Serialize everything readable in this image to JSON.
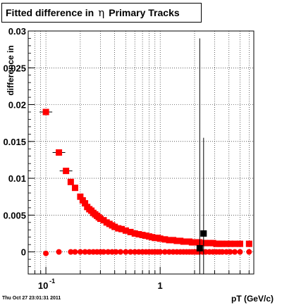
{
  "title": {
    "prefix": "Fitted difference in",
    "symbol": "η",
    "suffix": "Primary Tracks"
  },
  "timestamp": "Thu Oct 27 23:01:31 2011",
  "chart_data": {
    "type": "scatter",
    "xlabel": "pT (GeV/c)",
    "ylabel": "difference in",
    "x_scale": "log",
    "xlim": [
      0.07,
      6.6
    ],
    "ylim": [
      -0.003,
      0.03
    ],
    "grid": true,
    "x_ticks": [
      {
        "value": 0.1,
        "label": "10",
        "exponent": "-1"
      },
      {
        "value": 1,
        "label": "1",
        "exponent": ""
      }
    ],
    "y_ticks": [
      {
        "value": 0,
        "label": "0"
      },
      {
        "value": 0.005,
        "label": "0.005"
      },
      {
        "value": 0.01,
        "label": "0.01"
      },
      {
        "value": 0.015,
        "label": "0.015"
      },
      {
        "value": 0.02,
        "label": "0.02"
      },
      {
        "value": 0.025,
        "label": "0.025"
      },
      {
        "value": 0.03,
        "label": "0.03"
      }
    ],
    "series": [
      {
        "marker": "square",
        "color": "#ff0000",
        "x": [
          0.1,
          0.13,
          0.15,
          0.165,
          0.18,
          0.2,
          0.21,
          0.22,
          0.23,
          0.24,
          0.25,
          0.26,
          0.27,
          0.28,
          0.29,
          0.3,
          0.32,
          0.34,
          0.36,
          0.38,
          0.4,
          0.43,
          0.46,
          0.5,
          0.55,
          0.6,
          0.65,
          0.7,
          0.75,
          0.8,
          0.85,
          0.9,
          0.95,
          1.0,
          1.1,
          1.2,
          1.3,
          1.4,
          1.5,
          1.6,
          1.7,
          1.8,
          1.9,
          2.0,
          2.1,
          2.2,
          2.35,
          2.5,
          2.7,
          2.9,
          3.1,
          3.3,
          3.5,
          3.8,
          4.1,
          4.5,
          5.0,
          6.0
        ],
        "y": [
          0.019,
          0.0135,
          0.011,
          0.0095,
          0.0087,
          0.0075,
          0.007,
          0.0066,
          0.0061,
          0.0058,
          0.0056,
          0.0053,
          0.0051,
          0.0049,
          0.0047,
          0.0045,
          0.0043,
          0.004,
          0.0038,
          0.0036,
          0.0034,
          0.0032,
          0.0031,
          0.0029,
          0.0027,
          0.0025,
          0.0024,
          0.0023,
          0.0022,
          0.0021,
          0.002,
          0.0019,
          0.0019,
          0.0018,
          0.0017,
          0.0016,
          0.0016,
          0.0015,
          0.0015,
          0.0014,
          0.0014,
          0.0014,
          0.0013,
          0.0013,
          0.0013,
          0.0013,
          0.0012,
          0.0012,
          0.0012,
          0.0012,
          0.0011,
          0.0011,
          0.0011,
          0.0011,
          0.0011,
          0.0011,
          0.0011,
          0.0011
        ]
      },
      {
        "marker": "circle",
        "color": "#ff0000",
        "x": [
          0.1,
          0.13,
          0.165,
          0.18,
          0.2,
          0.22,
          0.24,
          0.26,
          0.28,
          0.3,
          0.32,
          0.35,
          0.38,
          0.41,
          0.45,
          0.5,
          0.55,
          0.6,
          0.65,
          0.7,
          0.75,
          0.8,
          0.85,
          0.9,
          0.95,
          1.0,
          1.1,
          1.2,
          1.3,
          1.4,
          1.5,
          1.6,
          1.7,
          1.8,
          1.9,
          2.0,
          2.1,
          2.2,
          2.35,
          2.5,
          2.7,
          2.9,
          3.1,
          3.3,
          3.5,
          3.8,
          4.1,
          4.5,
          5.0,
          6.0
        ],
        "y": [
          -0.0002,
          0.0,
          0.0,
          0.0,
          0.0,
          0.0,
          0.0,
          0.0,
          0.0,
          0.0,
          0.0,
          0.0,
          0.0,
          0.0,
          0.0,
          0.0,
          0.0,
          0.0,
          0.0,
          0.0,
          0.0,
          0.0,
          0.0,
          0.0,
          0.0,
          0.0,
          0.0,
          0.0,
          0.0,
          0.0,
          0.0,
          0.0,
          0.0,
          0.0,
          0.0,
          0.0,
          0.0,
          0.0,
          0.0,
          0.0,
          0.0,
          0.0,
          0.0,
          0.0,
          0.0,
          0.0,
          0.0,
          0.0,
          0.0,
          0.0
        ]
      },
      {
        "marker": "square",
        "color": "#000000",
        "x": [
          2.22,
          2.4
        ],
        "y": [
          0.0005,
          0.0025
        ],
        "yerr": [
          0.0285,
          0.013
        ]
      }
    ]
  }
}
